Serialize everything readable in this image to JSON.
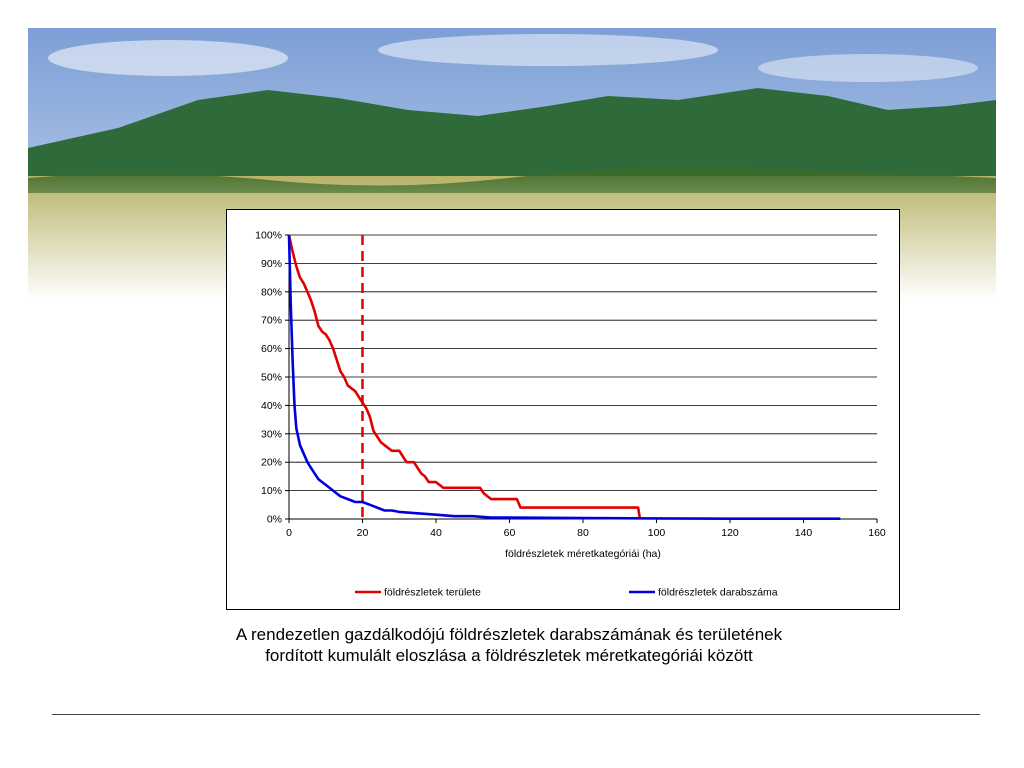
{
  "colors": {
    "sky_top": "#7d9fd6",
    "sky_bottom": "#c9d9ee",
    "mountain": "#2f6b3a",
    "field": "#b9b46a",
    "area_series": "#e00000",
    "count_series": "#0000dd",
    "threshold_line": "#e00000"
  },
  "caption": {
    "line1": "A rendezetlen gazdálkodójú földrészletek darabszámának és területének",
    "line2": "fordított kumulált eloszlása a földrészletek méretkategóriái között"
  },
  "chart_data": {
    "type": "line",
    "title": "",
    "xlabel": "földrészletek méretkategóriái (ha)",
    "ylabel": "",
    "xlim": [
      0,
      160
    ],
    "ylim": [
      0,
      100
    ],
    "x_ticks": [
      0,
      20,
      40,
      60,
      80,
      100,
      120,
      140,
      160
    ],
    "y_ticks": [
      "0%",
      "10%",
      "20%",
      "30%",
      "40%",
      "50%",
      "60%",
      "70%",
      "80%",
      "90%",
      "100%"
    ],
    "grid": "horizontal",
    "legend_position": "bottom",
    "reference_line": {
      "orientation": "vertical",
      "x": 20,
      "style": "dashed"
    },
    "series": [
      {
        "name": "földrészletek területe",
        "color": "#e00000",
        "x": [
          0,
          1,
          2,
          3,
          4,
          5,
          6,
          7,
          8,
          9,
          10,
          11,
          12,
          13,
          14,
          15,
          16,
          17,
          18,
          19,
          20,
          21,
          22,
          23,
          24,
          25,
          26,
          27,
          28,
          29,
          30,
          31,
          32,
          33,
          34,
          35,
          36,
          37,
          38,
          39,
          40,
          42,
          44,
          46,
          48,
          50,
          52,
          53,
          55,
          57,
          60,
          62,
          63,
          70,
          80,
          90,
          95,
          95.5
        ],
        "y": [
          100,
          94,
          89,
          85,
          83,
          80,
          77,
          73,
          68,
          66,
          65,
          63,
          60,
          56,
          52,
          50,
          47,
          46,
          45,
          43,
          41,
          39,
          36,
          31,
          29,
          27,
          26,
          25,
          24,
          24,
          24,
          22,
          20,
          20,
          20,
          18,
          16,
          15,
          13,
          13,
          13,
          11,
          11,
          11,
          11,
          11,
          11,
          9,
          7,
          7,
          7,
          7,
          4,
          4,
          4,
          4,
          4,
          0
        ]
      },
      {
        "name": "földrészletek darabszáma",
        "color": "#0000dd",
        "x": [
          0,
          0.5,
          1,
          1.5,
          2,
          3,
          4,
          5,
          6,
          7,
          8,
          9,
          10,
          12,
          14,
          16,
          18,
          20,
          22,
          24,
          26,
          28,
          30,
          35,
          40,
          45,
          50,
          55,
          60,
          80,
          100,
          120,
          140,
          150
        ],
        "y": [
          100,
          75,
          55,
          40,
          32,
          26,
          23,
          20,
          18,
          16,
          14,
          13,
          12,
          10,
          8,
          7,
          6,
          6,
          5,
          4,
          3,
          3,
          2.5,
          2,
          1.5,
          1,
          1,
          0.5,
          0.5,
          0.3,
          0.2,
          0.1,
          0.1,
          0.1
        ]
      }
    ]
  }
}
